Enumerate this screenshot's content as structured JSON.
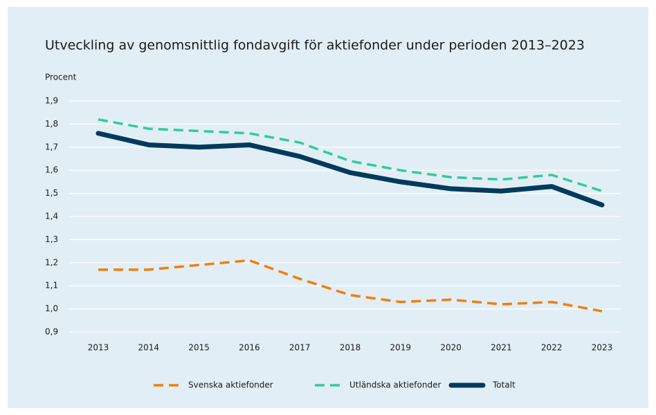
{
  "chart_data": {
    "type": "line",
    "title": "Utveckling av genomsnittlig fondavgift för aktiefonder under perioden 2013–2023",
    "y_label": "Procent",
    "categories": [
      "2013",
      "2014",
      "2015",
      "2016",
      "2017",
      "2018",
      "2019",
      "2020",
      "2021",
      "2022",
      "2023"
    ],
    "series": [
      {
        "name": "Svenska aktiefonder",
        "color": "#f07f09",
        "dash": true,
        "values": [
          1.17,
          1.17,
          1.19,
          1.21,
          1.13,
          1.06,
          1.03,
          1.04,
          1.02,
          1.03,
          0.99
        ]
      },
      {
        "name": "Utländska aktiefonder",
        "color": "#2fcc9a",
        "dash": true,
        "values": [
          1.82,
          1.78,
          1.77,
          1.76,
          1.72,
          1.64,
          1.6,
          1.57,
          1.56,
          1.58,
          1.51
        ]
      },
      {
        "name": "Totalt",
        "color": "#003a5d",
        "dash": false,
        "values": [
          1.76,
          1.71,
          1.7,
          1.71,
          1.66,
          1.59,
          1.55,
          1.52,
          1.51,
          1.53,
          1.45
        ]
      }
    ],
    "ylim": [
      0.9,
      1.9
    ],
    "yticks": [
      {
        "value": 0.9,
        "label": "0,9"
      },
      {
        "value": 1.0,
        "label": "1,0"
      },
      {
        "value": 1.1,
        "label": "1,1"
      },
      {
        "value": 1.2,
        "label": "1,2"
      },
      {
        "value": 1.3,
        "label": "1,3"
      },
      {
        "value": 1.4,
        "label": "1,4"
      },
      {
        "value": 1.5,
        "label": "1,5"
      },
      {
        "value": 1.6,
        "label": "1,6"
      },
      {
        "value": 1.7,
        "label": "1,7"
      },
      {
        "value": 1.8,
        "label": "1,8"
      },
      {
        "value": 1.9,
        "label": "1,9"
      }
    ],
    "grid": true,
    "legend": "bottom"
  }
}
